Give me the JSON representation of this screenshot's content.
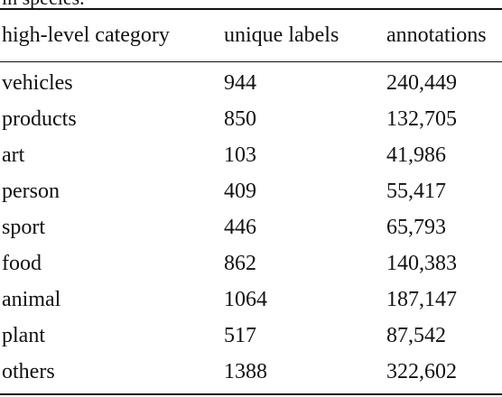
{
  "caption_fragment": "in species.",
  "table": {
    "headers": [
      "high-level category",
      "unique labels",
      "annotations"
    ],
    "rows": [
      [
        "vehicles",
        "944",
        "240,449"
      ],
      [
        "products",
        "850",
        "132,705"
      ],
      [
        "art",
        "103",
        "41,986"
      ],
      [
        "person",
        "409",
        "55,417"
      ],
      [
        "sport",
        "446",
        "65,793"
      ],
      [
        "food",
        "862",
        "140,383"
      ],
      [
        "animal",
        "1064",
        "187,147"
      ],
      [
        "plant",
        "517",
        "87,542"
      ],
      [
        "others",
        "1388",
        "322,602"
      ]
    ]
  }
}
